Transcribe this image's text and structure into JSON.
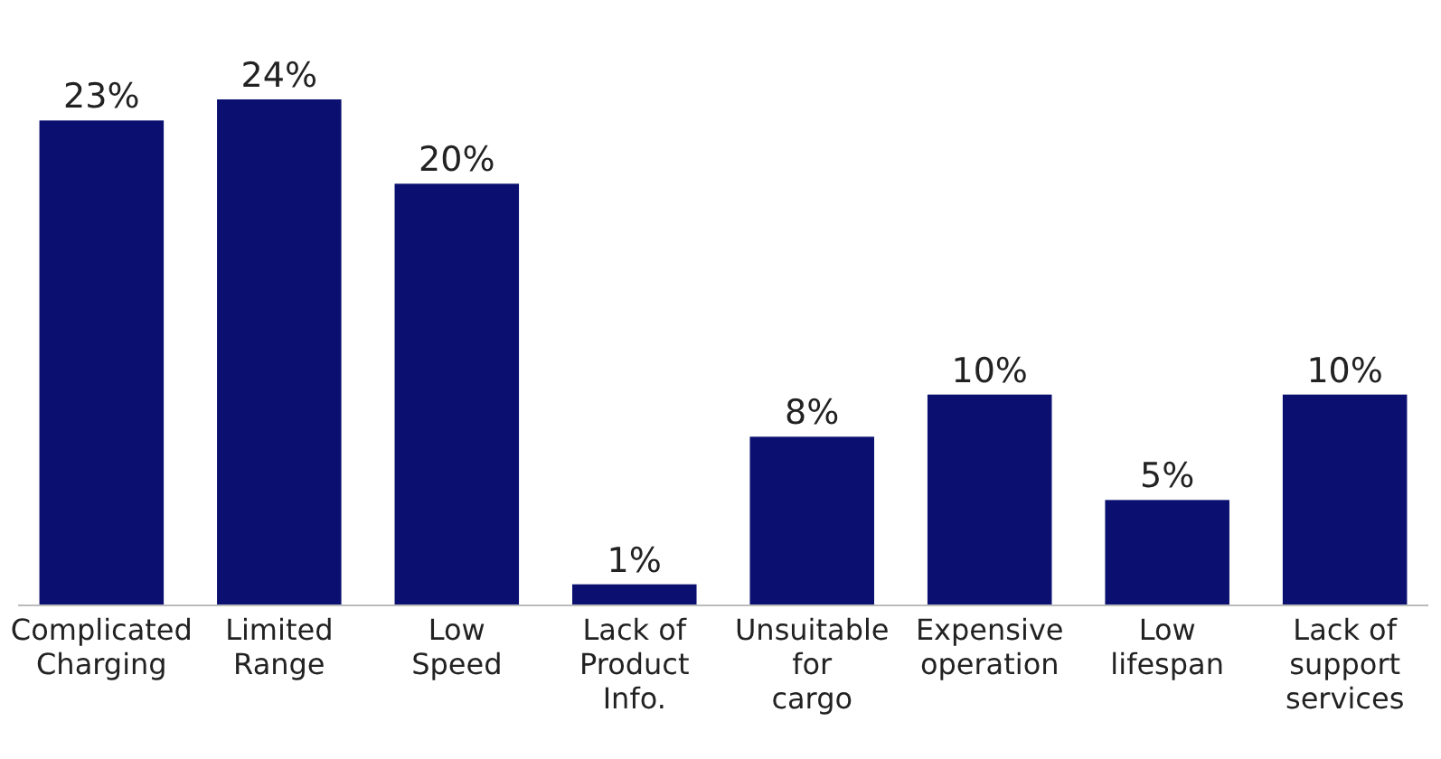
{
  "chart_data": {
    "type": "bar",
    "categories": [
      "Complicated Charging",
      "Limited Range",
      "Low Speed",
      "Lack of Product Info.",
      "Unsuitable for cargo",
      "Expensive operation",
      "Low lifespan",
      "Lack of support services"
    ],
    "values": [
      23,
      24,
      20,
      1,
      8,
      10,
      5,
      10
    ],
    "value_labels": [
      "23%",
      "24%",
      "20%",
      "1%",
      "8%",
      "10%",
      "5%",
      "10%"
    ],
    "color": "#0b1070"
  }
}
